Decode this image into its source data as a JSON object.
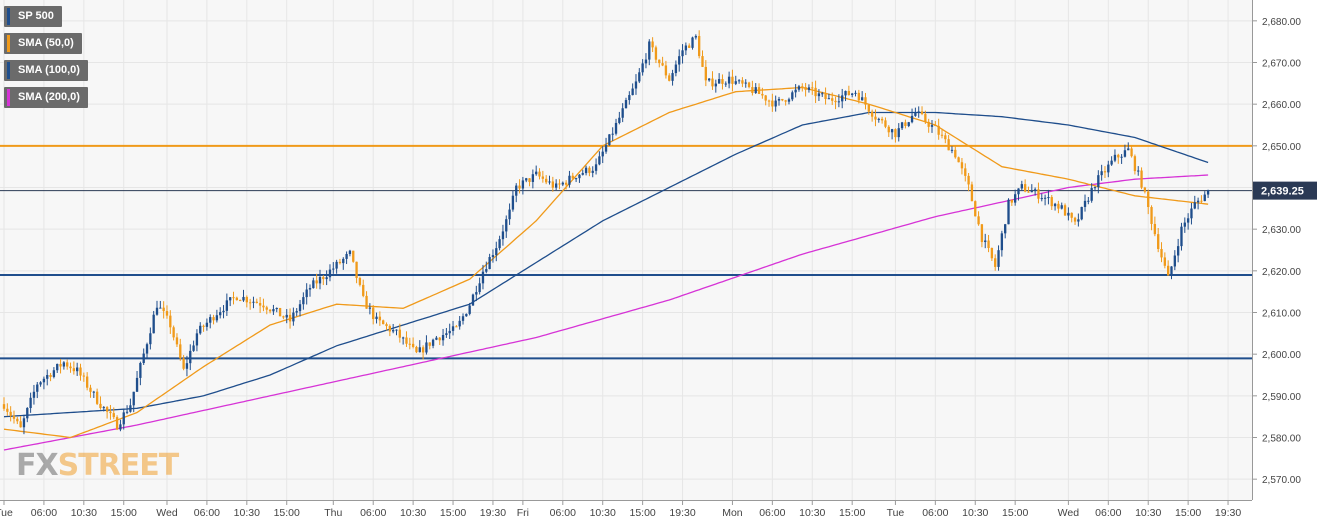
{
  "chart_data": {
    "type": "candlestick",
    "title": "SP 500",
    "y_axis": {
      "min": 2565,
      "max": 2685,
      "ticks": [
        "2,680.00",
        "2,670.00",
        "2,660.00",
        "2,650.00",
        "2,640.00",
        "2,630.00",
        "2,620.00",
        "2,610.00",
        "2,600.00",
        "2,590.00",
        "2,580.00",
        "2,570.00"
      ],
      "tick_values": [
        2680,
        2670,
        2660,
        2650,
        2640,
        2630,
        2620,
        2610,
        2600,
        2590,
        2580,
        2570
      ],
      "position": "right"
    },
    "x_axis": {
      "ticks": [
        "Tue",
        "06:00",
        "10:30",
        "15:00",
        "Wed",
        "06:00",
        "10:30",
        "15:00",
        "Thu",
        "06:00",
        "10:30",
        "15:00",
        "19:30",
        "Fri",
        "06:00",
        "10:30",
        "15:00",
        "19:30",
        "Mon",
        "06:00",
        "10:30",
        "15:00",
        "Tue",
        "06:00",
        "10:30",
        "15:00",
        "Wed",
        "06:00",
        "10:30",
        "15:00",
        "19:30"
      ],
      "tick_index": [
        0,
        12,
        24,
        36,
        49,
        61,
        73,
        85,
        99,
        111,
        123,
        135,
        147,
        156,
        168,
        180,
        192,
        204,
        219,
        231,
        243,
        255,
        268,
        280,
        292,
        304,
        320,
        332,
        344,
        356,
        368
      ],
      "count": 375
    },
    "grid": true,
    "last_price": "2,639.25",
    "last_price_value": 2639.25,
    "levels": [
      {
        "value": 2650,
        "color": "#f09a1a"
      },
      {
        "value": 2619,
        "color": "#1f4e8c"
      },
      {
        "value": 2599,
        "color": "#1f4e8c"
      },
      {
        "value": 2639.25,
        "color": "#2b3a55"
      }
    ],
    "legend": [
      {
        "label": "SP 500",
        "color": "#1f4e8c"
      },
      {
        "label": "SMA (50,0)",
        "color": "#f09a1a"
      },
      {
        "label": "SMA (100,0)",
        "color": "#1f4e8c"
      },
      {
        "label": "SMA (200,0)",
        "color": "#d633d6"
      }
    ],
    "price_path": [
      [
        0,
        2588
      ],
      [
        5,
        2582
      ],
      [
        10,
        2593
      ],
      [
        18,
        2598
      ],
      [
        22,
        2596
      ],
      [
        28,
        2589
      ],
      [
        34,
        2583
      ],
      [
        38,
        2588
      ],
      [
        42,
        2600
      ],
      [
        46,
        2612
      ],
      [
        50,
        2607
      ],
      [
        54,
        2596
      ],
      [
        58,
        2605
      ],
      [
        64,
        2610
      ],
      [
        70,
        2614
      ],
      [
        78,
        2612
      ],
      [
        86,
        2608
      ],
      [
        92,
        2616
      ],
      [
        98,
        2620
      ],
      [
        104,
        2624
      ],
      [
        108,
        2613
      ],
      [
        112,
        2608
      ],
      [
        118,
        2605
      ],
      [
        124,
        2600
      ],
      [
        130,
        2604
      ],
      [
        136,
        2606
      ],
      [
        140,
        2612
      ],
      [
        144,
        2620
      ],
      [
        148,
        2626
      ],
      [
        152,
        2634
      ],
      [
        154,
        2640
      ],
      [
        160,
        2643
      ],
      [
        166,
        2640
      ],
      [
        172,
        2643
      ],
      [
        178,
        2645
      ],
      [
        184,
        2655
      ],
      [
        190,
        2665
      ],
      [
        194,
        2674
      ],
      [
        200,
        2666
      ],
      [
        204,
        2673
      ],
      [
        208,
        2676
      ],
      [
        211,
        2665
      ],
      [
        218,
        2666
      ],
      [
        226,
        2663
      ],
      [
        232,
        2660
      ],
      [
        240,
        2664
      ],
      [
        248,
        2661
      ],
      [
        256,
        2663
      ],
      [
        262,
        2657
      ],
      [
        268,
        2653
      ],
      [
        274,
        2658
      ],
      [
        280,
        2654
      ],
      [
        286,
        2648
      ],
      [
        290,
        2640
      ],
      [
        294,
        2628
      ],
      [
        298,
        2621
      ],
      [
        302,
        2636
      ],
      [
        306,
        2640
      ],
      [
        312,
        2638
      ],
      [
        318,
        2635
      ],
      [
        322,
        2631
      ],
      [
        328,
        2641
      ],
      [
        334,
        2647
      ],
      [
        338,
        2649
      ],
      [
        342,
        2641
      ],
      [
        346,
        2629
      ],
      [
        350,
        2618
      ],
      [
        354,
        2630
      ],
      [
        358,
        2636
      ],
      [
        362,
        2639
      ]
    ],
    "sma50_path": [
      [
        0,
        2582
      ],
      [
        20,
        2580
      ],
      [
        40,
        2586
      ],
      [
        60,
        2597
      ],
      [
        80,
        2607
      ],
      [
        100,
        2612
      ],
      [
        120,
        2611
      ],
      [
        140,
        2618
      ],
      [
        160,
        2632
      ],
      [
        180,
        2650
      ],
      [
        200,
        2658
      ],
      [
        220,
        2663
      ],
      [
        240,
        2664
      ],
      [
        260,
        2660
      ],
      [
        280,
        2655
      ],
      [
        300,
        2645
      ],
      [
        320,
        2642
      ],
      [
        340,
        2638
      ],
      [
        362,
        2636
      ]
    ],
    "sma100_path": [
      [
        0,
        2585
      ],
      [
        20,
        2586
      ],
      [
        40,
        2587
      ],
      [
        60,
        2590
      ],
      [
        80,
        2595
      ],
      [
        100,
        2602
      ],
      [
        120,
        2607
      ],
      [
        140,
        2612
      ],
      [
        160,
        2622
      ],
      [
        180,
        2632
      ],
      [
        200,
        2640
      ],
      [
        220,
        2648
      ],
      [
        240,
        2655
      ],
      [
        260,
        2658
      ],
      [
        280,
        2658
      ],
      [
        300,
        2657
      ],
      [
        320,
        2655
      ],
      [
        340,
        2652
      ],
      [
        362,
        2646
      ]
    ],
    "sma200_path": [
      [
        0,
        2577
      ],
      [
        40,
        2583
      ],
      [
        80,
        2590
      ],
      [
        120,
        2597
      ],
      [
        160,
        2604
      ],
      [
        200,
        2613
      ],
      [
        240,
        2624
      ],
      [
        280,
        2633
      ],
      [
        320,
        2640
      ],
      [
        340,
        2642
      ],
      [
        362,
        2643
      ]
    ]
  },
  "branding": {
    "logo_fx": "FX",
    "logo_street": "STREET"
  }
}
